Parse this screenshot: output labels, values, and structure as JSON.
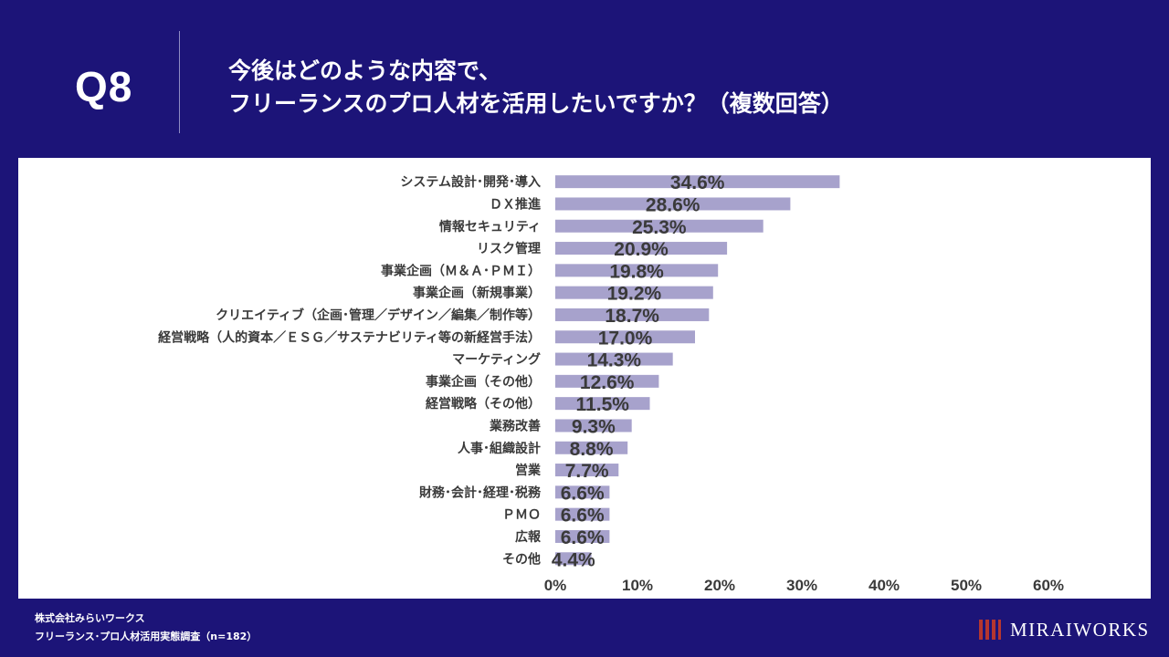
{
  "header": {
    "question": "Q8",
    "title_line1": "今後はどのような内容で、",
    "title_line2": "フリーランスのプロ人材を活用したいですか？（複数回答）"
  },
  "footer": {
    "company": "株式会社みらいワークス",
    "survey": "フリーランス･プロ人材活用実態調査（n=182）"
  },
  "brand": {
    "name": "MIRAIWORKS"
  },
  "colors": {
    "background": "#1c1478",
    "bar": "#a7a2cc",
    "label": "#3a3a3a"
  },
  "chart_data": {
    "type": "bar",
    "orientation": "horizontal",
    "categories": [
      "システム設計･開発･導入",
      "ＤＸ推進",
      "情報セキュリティ",
      "リスク管理",
      "事業企画（Ｍ＆Ａ･ＰＭＩ）",
      "事業企画（新規事業）",
      "クリエイティブ（企画･管理／デザイン／編集／制作等）",
      "経営戦略（人的資本／ＥＳＧ／サステナビリティ等の新経営手法）",
      "マーケティング",
      "事業企画（その他）",
      "経営戦略（その他）",
      "業務改善",
      "人事･組織設計",
      "営業",
      "財務･会計･経理･税務",
      "ＰＭＯ",
      "広報",
      "その他"
    ],
    "values": [
      34.6,
      28.6,
      25.3,
      20.9,
      19.8,
      19.2,
      18.7,
      17.0,
      14.3,
      12.6,
      11.5,
      9.3,
      8.8,
      7.7,
      6.6,
      6.6,
      6.6,
      4.4
    ],
    "value_labels": [
      "34.6%",
      "28.6%",
      "25.3%",
      "20.9%",
      "19.8%",
      "19.2%",
      "18.7%",
      "17.0%",
      "14.3%",
      "12.6%",
      "11.5%",
      "9.3%",
      "8.8%",
      "7.7%",
      "6.6%",
      "6.6%",
      "6.6%",
      "4.4%"
    ],
    "xlim": [
      0,
      60
    ],
    "xticks": [
      0,
      10,
      20,
      30,
      40,
      50,
      60
    ],
    "xtick_labels": [
      "0%",
      "10%",
      "20%",
      "30%",
      "40%",
      "50%",
      "60%"
    ],
    "title": "",
    "xlabel": "",
    "ylabel": "",
    "grid": false,
    "legend": "none"
  }
}
